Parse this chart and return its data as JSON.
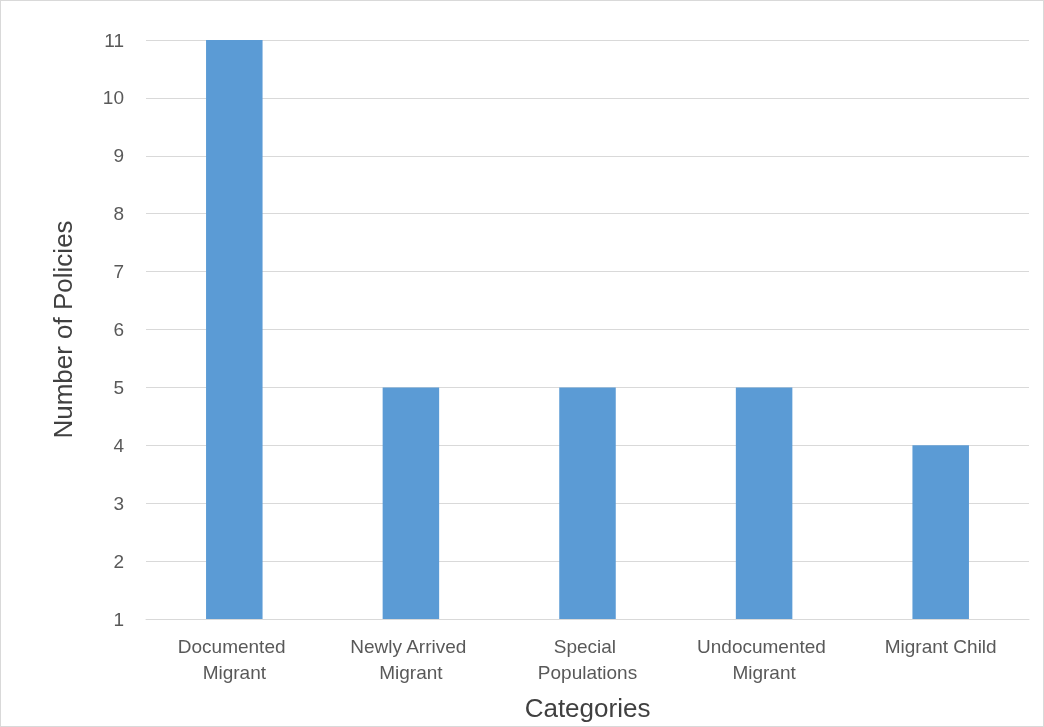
{
  "chart_data": {
    "type": "bar",
    "xlabel": "Categories",
    "ylabel": "Number of Policies",
    "categories": [
      "Documented Migrant",
      "Newly Arrived Migrant",
      "Special Populations",
      "Undocumented Migrant",
      "Migrant Child"
    ],
    "values": [
      11,
      5,
      5,
      5,
      4
    ],
    "color": "#5b9bd5",
    "ylim": [
      1,
      11
    ],
    "yticks": [
      1,
      2,
      3,
      4,
      5,
      6,
      7,
      8,
      9,
      10,
      11
    ],
    "grid": "y"
  }
}
